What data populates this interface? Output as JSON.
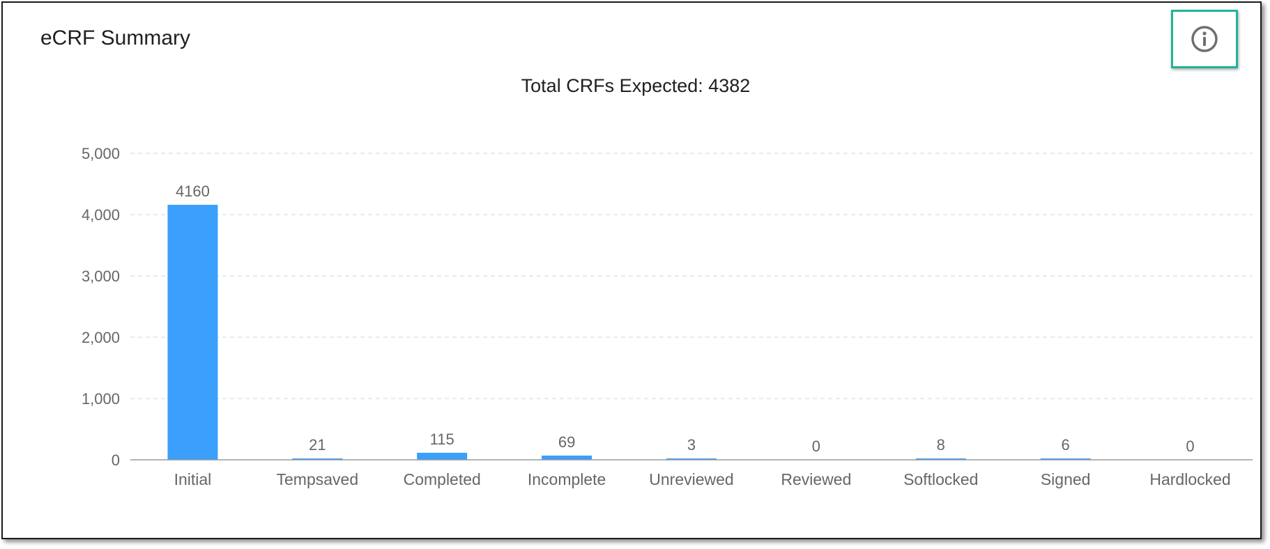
{
  "panel": {
    "title": "eCRF Summary",
    "info_icon": "info-circle-icon"
  },
  "colors": {
    "bar": "#3a9ffd",
    "grid": "#dfe3ee",
    "axis": "#9a9a9a",
    "text": "#666666",
    "title": "#1f1f1f",
    "highlight": "#21b39a"
  },
  "chart_data": {
    "type": "bar",
    "title": "Total CRFs Expected: 4382",
    "categories": [
      "Initial",
      "Tempsaved",
      "Completed",
      "Incomplete",
      "Unreviewed",
      "Reviewed",
      "Softlocked",
      "Signed",
      "Hardlocked"
    ],
    "values": [
      4160,
      21,
      115,
      69,
      3,
      0,
      8,
      6,
      0
    ],
    "data_labels": [
      "4160",
      "21",
      "115",
      "69",
      "3",
      "0",
      "8",
      "6",
      "0"
    ],
    "yticks": [
      0,
      1000,
      2000,
      3000,
      4000,
      5000
    ],
    "ytick_labels": [
      "0",
      "1,000",
      "2,000",
      "3,000",
      "4,000",
      "5,000"
    ],
    "ylim": [
      0,
      5000
    ],
    "grid": true,
    "legend": "none"
  }
}
